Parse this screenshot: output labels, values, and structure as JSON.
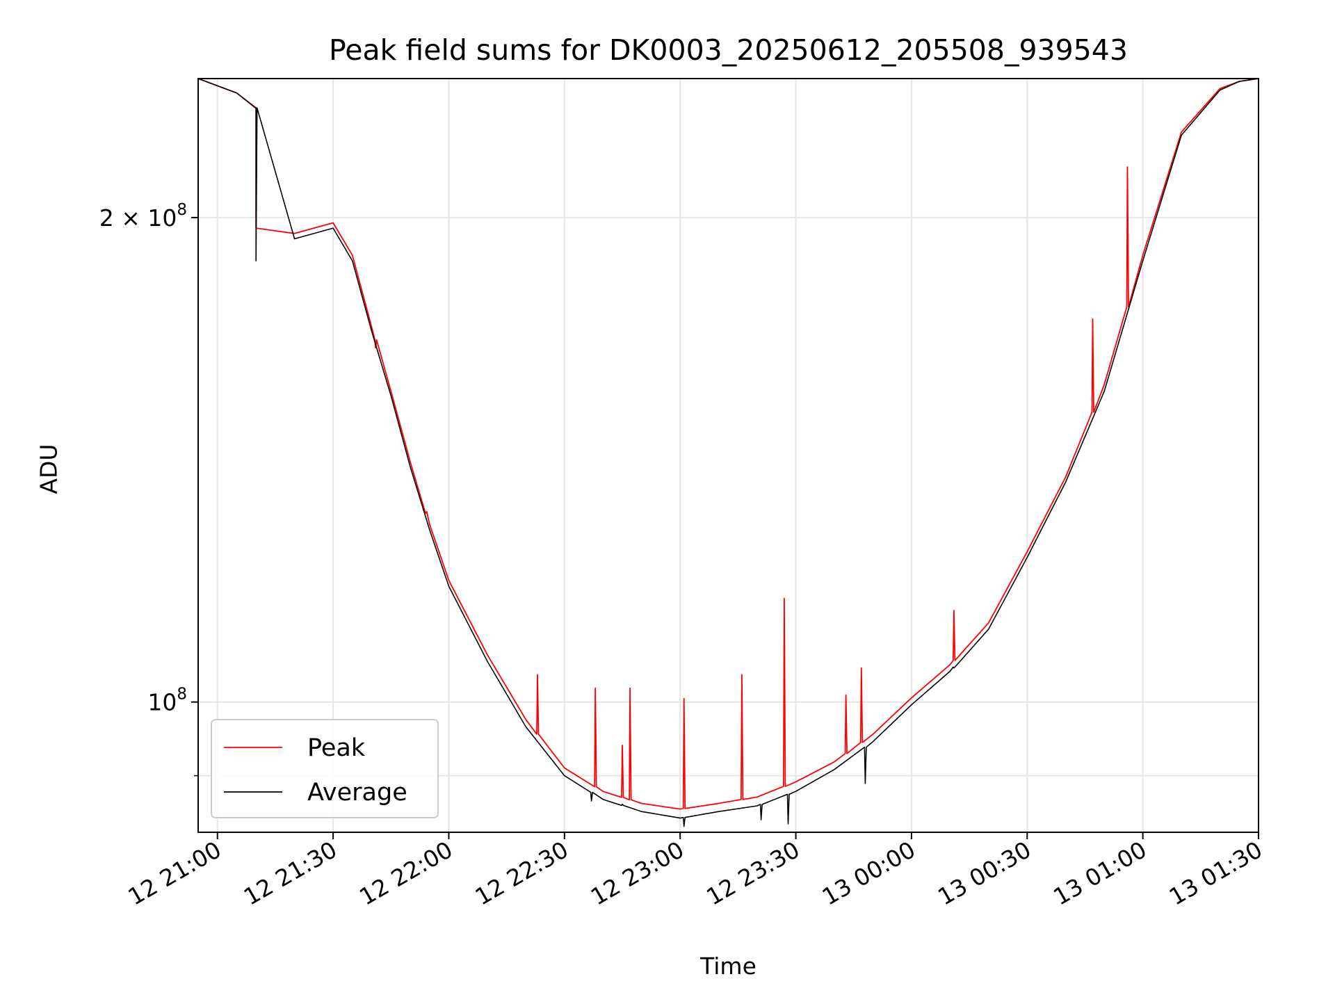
{
  "chart_data": {
    "type": "line",
    "title": "Peak field sums for DK0003_20250612_205508_939543",
    "xlabel": "Time",
    "ylabel": "ADU",
    "x_unit": "time",
    "xlim": [
      "2025-06-12 20:55",
      "2025-06-13 01:30"
    ],
    "ylim": [
      83000000,
      244000000
    ],
    "yscale": "log",
    "grid": true,
    "legend_position": "lower-left",
    "x_ticks": [
      "12 21:00",
      "12 21:30",
      "12 22:00",
      "12 22:30",
      "12 23:00",
      "12 23:30",
      "13 00:00",
      "13 00:30",
      "13 01:00",
      "13 01:30"
    ],
    "y_ticks": [
      {
        "value": 100000000,
        "base": "10",
        "exponent": "8",
        "mantissa": ""
      },
      {
        "value": 200000000,
        "base": "10",
        "exponent": "8",
        "mantissa": "2 ×"
      }
    ],
    "x_tick_times": [
      "2025-06-12 21:00",
      "2025-06-12 21:30",
      "2025-06-12 22:00",
      "2025-06-12 22:30",
      "2025-06-12 23:00",
      "2025-06-12 23:30",
      "2025-06-13 00:00",
      "2025-06-13 00:30",
      "2025-06-13 01:00",
      "2025-06-13 01:30"
    ],
    "series": [
      {
        "name": "Average",
        "color": "#000000",
        "x": [
          "2025-06-12 20:55",
          "2025-06-12 21:05",
          "2025-06-12 21:10",
          "2025-06-12 21:10",
          "2025-06-12 21:20",
          "2025-06-12 21:30",
          "2025-06-12 21:35",
          "2025-06-12 21:40",
          "2025-06-12 21:45",
          "2025-06-12 21:50",
          "2025-06-12 21:55",
          "2025-06-12 22:00",
          "2025-06-12 22:10",
          "2025-06-12 22:20",
          "2025-06-12 22:30",
          "2025-06-12 22:40",
          "2025-06-12 22:50",
          "2025-06-12 23:00",
          "2025-06-12 23:10",
          "2025-06-12 23:20",
          "2025-06-12 23:30",
          "2025-06-12 23:40",
          "2025-06-12 23:50",
          "2025-06-13 00:00",
          "2025-06-13 00:10",
          "2025-06-13 00:20",
          "2025-06-13 00:30",
          "2025-06-13 00:40",
          "2025-06-13 00:50",
          "2025-06-13 01:00",
          "2025-06-13 01:10",
          "2025-06-13 01:20",
          "2025-06-13 01:25",
          "2025-06-13 01:30"
        ],
        "y": [
          244000000,
          239000000,
          234000000,
          196000000,
          194000000,
          197000000,
          188000000,
          170000000,
          155000000,
          140000000,
          128000000,
          118000000,
          106000000,
          96500000,
          90000000,
          87000000,
          85500000,
          84700000,
          85500000,
          86200000,
          88000000,
          90800000,
          94500000,
          99600000,
          104500000,
          111000000,
          123000000,
          137000000,
          156000000,
          188000000,
          225000000,
          240000000,
          243000000,
          244000000
        ]
      },
      {
        "name": "Peak",
        "color": "#ff0000",
        "x": [
          "2025-06-12 20:55",
          "2025-06-12 21:05",
          "2025-06-12 21:10",
          "2025-06-12 21:10",
          "2025-06-12 21:20",
          "2025-06-12 21:30",
          "2025-06-12 21:35",
          "2025-06-12 21:40",
          "2025-06-12 21:45",
          "2025-06-12 21:50",
          "2025-06-12 21:55",
          "2025-06-12 22:00",
          "2025-06-12 22:10",
          "2025-06-12 22:20",
          "2025-06-12 22:30",
          "2025-06-12 22:40",
          "2025-06-12 22:50",
          "2025-06-12 23:00",
          "2025-06-12 23:10",
          "2025-06-12 23:20",
          "2025-06-12 23:30",
          "2025-06-12 23:40",
          "2025-06-12 23:50",
          "2025-06-13 00:00",
          "2025-06-13 00:10",
          "2025-06-13 00:20",
          "2025-06-13 00:30",
          "2025-06-13 00:40",
          "2025-06-13 00:50",
          "2025-06-13 01:00",
          "2025-06-13 01:10",
          "2025-06-13 01:20",
          "2025-06-13 01:25",
          "2025-06-13 01:30"
        ],
        "y": [
          244000000,
          239000000,
          234000000,
          197000000,
          195500000,
          198500000,
          189500000,
          171000000,
          156000000,
          141000000,
          129000000,
          119000000,
          107000000,
          97500000,
          91000000,
          88000000,
          86500000,
          85800000,
          86500000,
          87300000,
          89200000,
          91800000,
          95500000,
          100600000,
          105500000,
          112000000,
          124000000,
          138000000,
          157500000,
          189500000,
          226000000,
          240500000,
          243000000,
          244000000
        ],
        "spikes": [
          {
            "x": "2025-06-12 21:41",
            "y": 166000000
          },
          {
            "x": "2025-06-12 21:54",
            "y": 131000000
          },
          {
            "x": "2025-06-12 22:23",
            "y": 104000000
          },
          {
            "x": "2025-06-12 22:38",
            "y": 102000000
          },
          {
            "x": "2025-06-12 22:45",
            "y": 94000000
          },
          {
            "x": "2025-06-12 22:47",
            "y": 102000000
          },
          {
            "x": "2025-06-12 23:01",
            "y": 100500000
          },
          {
            "x": "2025-06-12 23:16",
            "y": 104000000
          },
          {
            "x": "2025-06-12 23:27",
            "y": 116000000
          },
          {
            "x": "2025-06-12 23:43",
            "y": 101000000
          },
          {
            "x": "2025-06-12 23:47",
            "y": 105000000
          },
          {
            "x": "2025-06-13 00:11",
            "y": 114000000
          },
          {
            "x": "2025-06-13 00:47",
            "y": 173000000
          },
          {
            "x": "2025-06-13 00:56",
            "y": 215000000
          }
        ]
      }
    ],
    "avg_dips": [
      {
        "x": "2025-06-12 21:10",
        "y": 188000000
      },
      {
        "x": "2025-06-12 22:37",
        "y": 86800000
      },
      {
        "x": "2025-06-12 22:45",
        "y": 86400000
      },
      {
        "x": "2025-06-12 23:01",
        "y": 83700000
      },
      {
        "x": "2025-06-12 23:21",
        "y": 84500000
      },
      {
        "x": "2025-06-12 23:28",
        "y": 84000000
      },
      {
        "x": "2025-06-12 23:48",
        "y": 89000000
      },
      {
        "x": "2025-06-13 00:11",
        "y": 105000000
      }
    ],
    "legend": [
      {
        "label": "Peak",
        "color": "#ff0000"
      },
      {
        "label": "Average",
        "color": "#000000"
      }
    ]
  }
}
